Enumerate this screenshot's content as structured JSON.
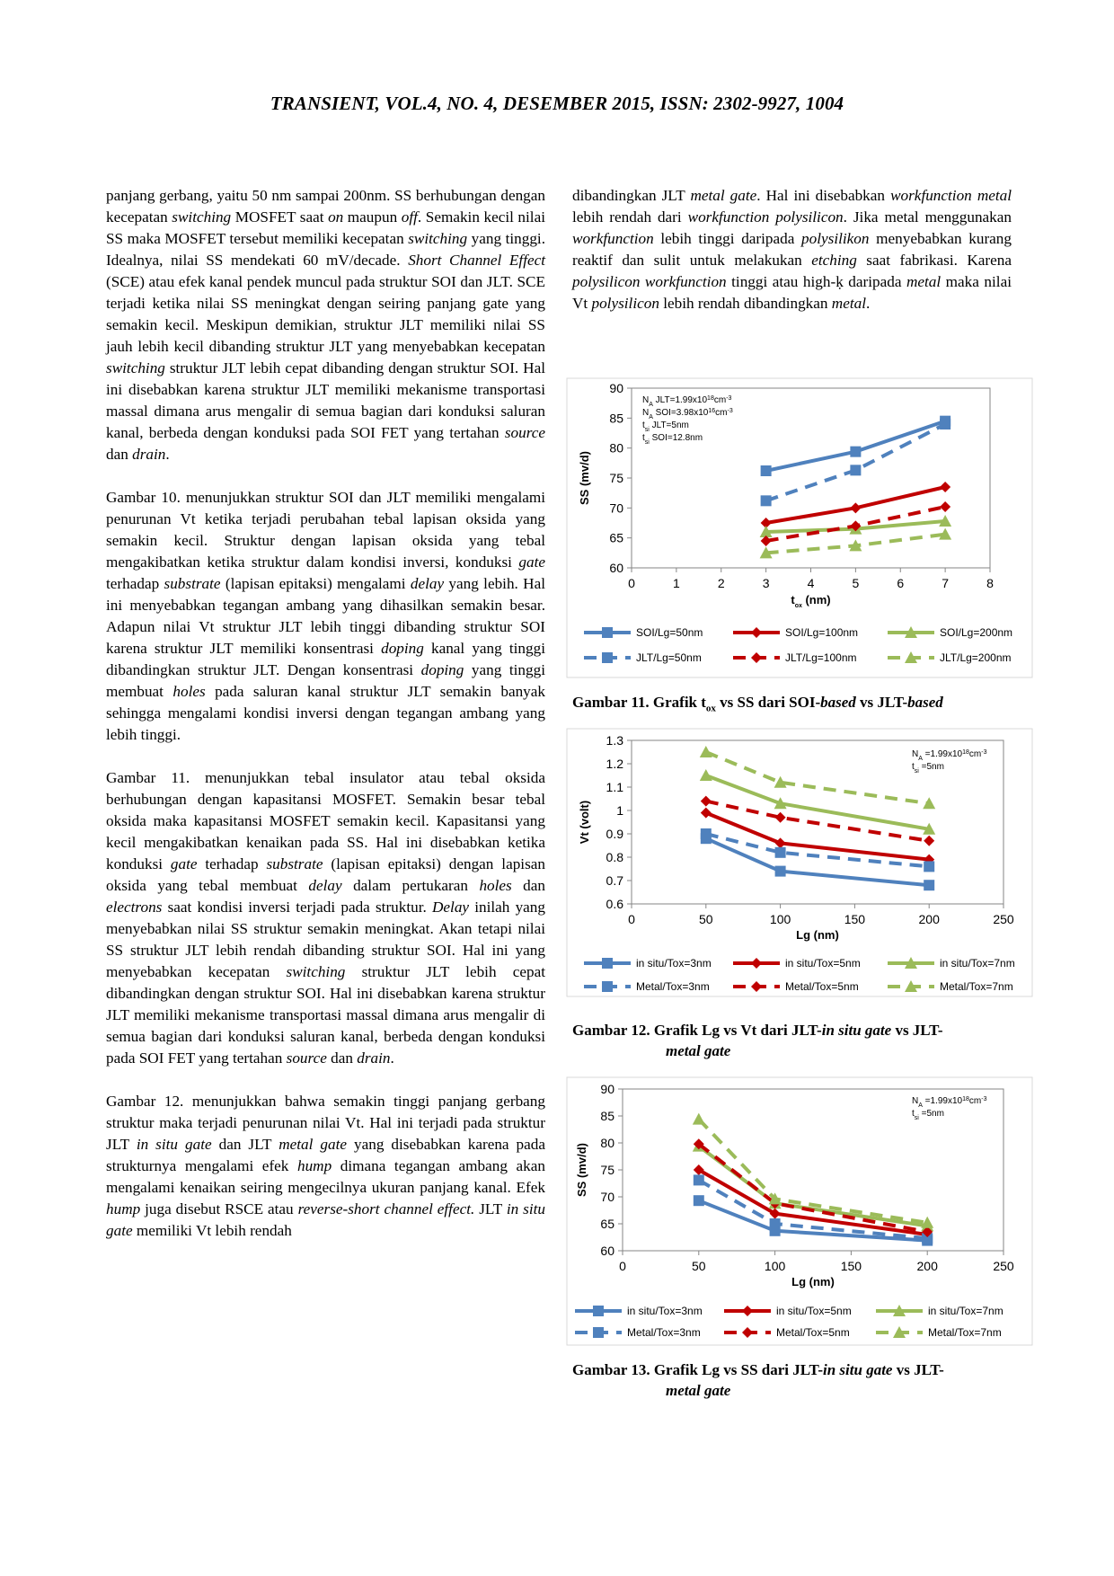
{
  "header": "TRANSIENT, VOL.4, NO. 4, DESEMBER 2015, ISSN: 2302-9927, 1004",
  "left_paragraphs": [
    [
      {
        "t": "panjang gerbang, yaitu 50 nm sampai 200nm. SS berhubungan dengan kecepatan "
      },
      {
        "t": "switching",
        "i": true
      },
      {
        "t": " MOSFET saat "
      },
      {
        "t": "on",
        "i": true
      },
      {
        "t": " maupun "
      },
      {
        "t": "off",
        "i": true
      },
      {
        "t": ". Semakin kecil nilai SS maka MOSFET tersebut memiliki kecepatan "
      },
      {
        "t": "switching",
        "i": true
      },
      {
        "t": " yang tinggi. Idealnya, nilai SS mendekati 60 mV/decade. "
      },
      {
        "t": "Short Channel Effect",
        "i": true
      },
      {
        "t": " (SCE) atau efek kanal pendek muncul pada struktur SOI dan JLT. SCE terjadi ketika nilai SS meningkat dengan seiring panjang gate yang semakin kecil. Meskipun demikian, struktur JLT memiliki nilai SS jauh lebih kecil dibanding struktur JLT yang menyebabkan kecepatan "
      },
      {
        "t": "switching",
        "i": true
      },
      {
        "t": " struktur JLT lebih cepat dibanding dengan struktur SOI. Hal ini disebabkan karena struktur JLT memiliki mekanisme transportasi massal dimana arus mengalir di semua bagian dari konduksi saluran kanal, berbeda dengan konduksi pada SOI FET yang tertahan "
      },
      {
        "t": "source",
        "i": true
      },
      {
        "t": " dan "
      },
      {
        "t": "drain",
        "i": true
      },
      {
        "t": "."
      }
    ],
    [
      {
        "t": "Gambar 10. menunjukkan struktur SOI dan JLT memiliki mengalami penurunan Vt ketika terjadi perubahan tebal lapisan oksida yang semakin kecil. Struktur dengan lapisan oksida yang tebal mengakibatkan ketika struktur dalam kondisi inversi, konduksi "
      },
      {
        "t": "gate",
        "i": true
      },
      {
        "t": " terhadap "
      },
      {
        "t": "substrate",
        "i": true
      },
      {
        "t": " (lapisan epitaksi) mengalami "
      },
      {
        "t": "delay",
        "i": true
      },
      {
        "t": " yang lebih. Hal ini menyebabkan tegangan ambang yang dihasilkan semakin besar. Adapun nilai Vt struktur JLT lebih tinggi dibanding struktur SOI karena struktur JLT memiliki konsentrasi "
      },
      {
        "t": "doping",
        "i": true
      },
      {
        "t": " kanal yang tinggi dibandingkan struktur JLT. Dengan konsentrasi "
      },
      {
        "t": "doping",
        "i": true
      },
      {
        "t": " yang tinggi membuat "
      },
      {
        "t": "holes",
        "i": true
      },
      {
        "t": " pada saluran kanal struktur JLT semakin banyak sehingga mengalami kondisi inversi dengan tegangan ambang yang lebih tinggi."
      }
    ],
    [
      {
        "t": "Gambar 11. menunjukkan tebal insulator atau tebal oksida berhubungan dengan kapasitansi MOSFET. Semakin besar tebal oksida maka kapasitansi MOSFET semakin kecil. Kapasitansi yang kecil mengakibatkan kenaikan pada SS. Hal ini disebabkan ketika konduksi "
      },
      {
        "t": "gate",
        "i": true
      },
      {
        "t": " terhadap "
      },
      {
        "t": "substrate",
        "i": true
      },
      {
        "t": " (lapisan epitaksi) dengan lapisan oksida yang tebal membuat "
      },
      {
        "t": "delay",
        "i": true
      },
      {
        "t": " dalam pertukaran "
      },
      {
        "t": "holes",
        "i": true
      },
      {
        "t": " dan "
      },
      {
        "t": "electrons",
        "i": true
      },
      {
        "t": " saat kondisi inversi terjadi pada struktur. "
      },
      {
        "t": "Delay",
        "i": true
      },
      {
        "t": " inilah yang menyebabkan nilai SS struktur semakin meningkat. Akan tetapi nilai SS struktur JLT lebih rendah dibanding struktur SOI. Hal ini yang menyebabkan kecepatan "
      },
      {
        "t": "switching",
        "i": true
      },
      {
        "t": " struktur JLT lebih cepat dibandingkan dengan struktur SOI. Hal ini disebabkan karena struktur JLT memiliki mekanisme transportasi massal dimana arus mengalir di semua bagian dari konduksi saluran kanal, berbeda dengan konduksi pada SOI FET yang tertahan "
      },
      {
        "t": "source",
        "i": true
      },
      {
        "t": " dan "
      },
      {
        "t": "drain",
        "i": true
      },
      {
        "t": "."
      }
    ],
    [
      {
        "t": "Gambar 12. menunjukkan bahwa semakin tinggi panjang gerbang struktur maka terjadi penurunan nilai Vt. Hal ini terjadi pada struktur JLT "
      },
      {
        "t": "in situ gate",
        "i": true
      },
      {
        "t": " dan JLT "
      },
      {
        "t": "metal gate",
        "i": true
      },
      {
        "t": " yang disebabkan karena pada strukturnya mengalami efek "
      },
      {
        "t": "hump",
        "i": true
      },
      {
        "t": " dimana tegangan ambang akan mengalami kenaikan seiring mengecilnya ukuran panjang kanal. Efek "
      },
      {
        "t": "hump",
        "i": true
      },
      {
        "t": " juga disebut RSCE atau "
      },
      {
        "t": "reverse-short channel effect.",
        "i": true
      },
      {
        "t": " JLT "
      },
      {
        "t": "in situ gate",
        "i": true
      },
      {
        "t": " memiliki Vt lebih rendah"
      }
    ]
  ],
  "right_paragraph": [
    {
      "t": "dibandingkan JLT "
    },
    {
      "t": "metal gate",
      "i": true
    },
    {
      "t": ". Hal ini disebabkan "
    },
    {
      "t": "workfunction metal",
      "i": true
    },
    {
      "t": " lebih rendah dari "
    },
    {
      "t": "workfunction polysilicon",
      "i": true
    },
    {
      "t": ". Jika metal menggunakan "
    },
    {
      "t": "workfunction",
      "i": true
    },
    {
      "t": " lebih tinggi daripada "
    },
    {
      "t": "polysilikon",
      "i": true
    },
    {
      "t": " menyebabkan kurang reaktif dan sulit untuk melakukan "
    },
    {
      "t": "etching",
      "i": true
    },
    {
      "t": " saat fabrikasi. Karena "
    },
    {
      "t": "polysilicon workfunction",
      "i": true
    },
    {
      "t": " tinggi atau high-ḳ daripada "
    },
    {
      "t": "metal",
      "i": true
    },
    {
      "t": " maka nilai Vt "
    },
    {
      "t": "polysilicon",
      "i": true
    },
    {
      "t": " lebih rendah dibandingkan "
    },
    {
      "t": "metal",
      "i": true
    },
    {
      "t": "."
    }
  ],
  "captions": {
    "fig11": {
      "label": "Gambar 11. Grafik t",
      "sub": "ox",
      "rest1": " vs SS dari SOI-",
      "it": "based",
      "rest2": " vs JLT-",
      "it2": "based"
    },
    "fig12": {
      "line1a": "Gambar 12.  Grafik  Lg  vs  Vt  dari  JLT-",
      "line1i": "in situ gate",
      "line1b": "  vs  JLT-",
      "line2": "metal gate"
    },
    "fig13": {
      "line1a": "Gambar 13.  Grafik  Lg  vs  SS  dari  JLT-",
      "line1i": "in situ gate",
      "line1b": "  vs  JLT-",
      "line2": "metal gate"
    }
  },
  "colors": {
    "blue": "#4f81bd",
    "red": "#c00000",
    "green": "#9bbb59"
  },
  "chart_data": [
    {
      "type": "line",
      "id": "fig11",
      "xlabel": "t",
      "xlabel_sub": "ox",
      "xlabel_unit": " (nm)",
      "ylabel": "SS (mv/d)",
      "xlim": [
        0,
        8
      ],
      "ylim": [
        60,
        90
      ],
      "xticks": [
        0,
        1,
        2,
        3,
        4,
        5,
        6,
        7,
        8
      ],
      "yticks": [
        60,
        65,
        70,
        75,
        80,
        85,
        90
      ],
      "annotations": [
        {
          "pre": "N",
          "sub": "A",
          "post": " JLT=1.99x10",
          "sup": "18",
          "tail": "cm",
          "sup2": "-3"
        },
        {
          "pre": "N",
          "sub": "A",
          "post": " SOI=3.98x10",
          "sup": "16",
          "tail": "cm",
          "sup2": "-3"
        },
        {
          "pre": "t",
          "sub": "si",
          "post": " JLT=5nm",
          "sup": "",
          "tail": "",
          "sup2": ""
        },
        {
          "pre": "t",
          "sub": "si",
          "post": " SOI=12.8nm",
          "sup": "",
          "tail": "",
          "sup2": ""
        }
      ],
      "series": [
        {
          "name": "SOI/Lg=50nm",
          "color": "blue",
          "dash": false,
          "marker": "square",
          "x": [
            3,
            5,
            7
          ],
          "y": [
            76.2,
            79.4,
            84.5
          ]
        },
        {
          "name": "SOI/Lg=100nm",
          "color": "red",
          "dash": false,
          "marker": "diamond",
          "x": [
            3,
            5,
            7
          ],
          "y": [
            67.5,
            70,
            73.5
          ]
        },
        {
          "name": "SOI/Lg=200nm",
          "color": "green",
          "dash": false,
          "marker": "triangle",
          "x": [
            3,
            5,
            7
          ],
          "y": [
            66,
            66.5,
            67.8
          ]
        },
        {
          "name": "JLT/Lg=50nm",
          "color": "blue",
          "dash": true,
          "marker": "square",
          "x": [
            3,
            5,
            7
          ],
          "y": [
            71.2,
            76.3,
            84
          ]
        },
        {
          "name": "JLT/Lg=100nm",
          "color": "red",
          "dash": true,
          "marker": "diamond",
          "x": [
            3,
            5,
            7
          ],
          "y": [
            64.5,
            67,
            70.2
          ]
        },
        {
          "name": "JLT/Lg=200nm",
          "color": "green",
          "dash": true,
          "marker": "triangle",
          "x": [
            3,
            5,
            7
          ],
          "y": [
            62.5,
            63.7,
            65.6
          ]
        }
      ]
    },
    {
      "type": "line",
      "id": "fig12",
      "xlabel": "Lg (nm)",
      "xlabel_sub": "",
      "xlabel_unit": "",
      "ylabel": "Vt (volt)",
      "xlim": [
        0,
        250
      ],
      "ylim": [
        0.6,
        1.3
      ],
      "xticks": [
        0,
        50,
        100,
        150,
        200,
        250
      ],
      "yticks": [
        0.6,
        0.7,
        0.8,
        0.9,
        1,
        1.1,
        1.2,
        1.3
      ],
      "annotations": [
        {
          "pre": "N",
          "sub": "A",
          "post": " =1.99x10",
          "sup": "18",
          "tail": "cm",
          "sup2": "-3"
        },
        {
          "pre": "t",
          "sub": "si",
          "post": " =5nm",
          "sup": "",
          "tail": "",
          "sup2": ""
        }
      ],
      "series": [
        {
          "name": "in situ/Tox=3nm",
          "color": "blue",
          "dash": false,
          "marker": "square",
          "x": [
            50,
            100,
            200
          ],
          "y": [
            0.88,
            0.74,
            0.68
          ]
        },
        {
          "name": "in situ/Tox=5nm",
          "color": "red",
          "dash": false,
          "marker": "diamond",
          "x": [
            50,
            100,
            200
          ],
          "y": [
            0.99,
            0.86,
            0.79
          ]
        },
        {
          "name": "in situ/Tox=7nm",
          "color": "green",
          "dash": false,
          "marker": "triangle",
          "x": [
            50,
            100,
            200
          ],
          "y": [
            1.15,
            1.03,
            0.92
          ]
        },
        {
          "name": "Metal/Tox=3nm",
          "color": "blue",
          "dash": true,
          "marker": "square",
          "x": [
            50,
            100,
            200
          ],
          "y": [
            0.9,
            0.82,
            0.76
          ]
        },
        {
          "name": "Metal/Tox=5nm",
          "color": "red",
          "dash": true,
          "marker": "diamond",
          "x": [
            50,
            100,
            200
          ],
          "y": [
            1.04,
            0.97,
            0.87
          ]
        },
        {
          "name": "Metal/Tox=7nm",
          "color": "green",
          "dash": true,
          "marker": "triangle",
          "x": [
            50,
            100,
            200
          ],
          "y": [
            1.25,
            1.12,
            1.03
          ]
        }
      ]
    },
    {
      "type": "line",
      "id": "fig13",
      "xlabel": "Lg (nm)",
      "xlabel_sub": "",
      "xlabel_unit": "",
      "ylabel": "SS (mv/d)",
      "xlim": [
        0,
        250
      ],
      "ylim": [
        60,
        90
      ],
      "xticks": [
        0,
        50,
        100,
        150,
        200,
        250
      ],
      "yticks": [
        60,
        65,
        70,
        75,
        80,
        85,
        90
      ],
      "annotations": [
        {
          "pre": "N",
          "sub": "A",
          "post": " =1.99x10",
          "sup": "18",
          "tail": "cm",
          "sup2": "-3"
        },
        {
          "pre": "t",
          "sub": "si",
          "post": " =5nm",
          "sup": "",
          "tail": "",
          "sup2": ""
        }
      ],
      "series": [
        {
          "name": "in situ/Tox=3nm",
          "color": "blue",
          "dash": false,
          "marker": "square",
          "x": [
            50,
            100,
            200
          ],
          "y": [
            69.3,
            63.7,
            61.9
          ]
        },
        {
          "name": "in situ/Tox=5nm",
          "color": "red",
          "dash": false,
          "marker": "diamond",
          "x": [
            50,
            100,
            200
          ],
          "y": [
            75,
            66.9,
            63
          ]
        },
        {
          "name": "in situ/Tox=7nm",
          "color": "green",
          "dash": false,
          "marker": "triangle",
          "x": [
            50,
            100,
            200
          ],
          "y": [
            79.4,
            68.8,
            64.6
          ]
        },
        {
          "name": "Metal/Tox=3nm",
          "color": "blue",
          "dash": true,
          "marker": "square",
          "x": [
            50,
            100,
            200
          ],
          "y": [
            73.1,
            65,
            62.3
          ]
        },
        {
          "name": "Metal/Tox=5nm",
          "color": "red",
          "dash": true,
          "marker": "diamond",
          "x": [
            50,
            100,
            200
          ],
          "y": [
            79.8,
            68.8,
            63.5
          ]
        },
        {
          "name": "Metal/Tox=7nm",
          "color": "green",
          "dash": true,
          "marker": "triangle",
          "x": [
            50,
            100,
            200
          ],
          "y": [
            84.4,
            69.6,
            65.2
          ]
        }
      ]
    }
  ]
}
